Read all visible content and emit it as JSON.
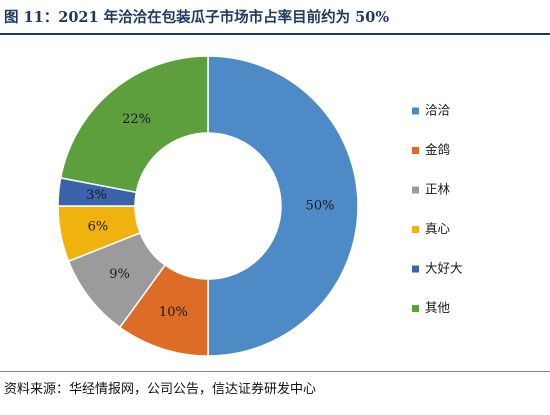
{
  "figure": {
    "title": "图 11：2021 年洽洽在包装瓜子市场市占率目前约为 50%",
    "source": "资料来源：华经情报网，公司公告，信达证券研发中心"
  },
  "chart_data": {
    "type": "pie",
    "donut": true,
    "legend_position": "right",
    "slices": [
      {
        "name": "洽洽",
        "value": 50,
        "label": "50%",
        "color": "#4e8bc6"
      },
      {
        "name": "金鸽",
        "value": 10,
        "label": "10%",
        "color": "#dd6c26"
      },
      {
        "name": "正林",
        "value": 9,
        "label": "9%",
        "color": "#9b9b9b"
      },
      {
        "name": "真心",
        "value": 6,
        "label": "6%",
        "color": "#efb20f"
      },
      {
        "name": "大好大",
        "value": 3,
        "label": "3%",
        "color": "#3a63ab"
      },
      {
        "name": "其他",
        "value": 22,
        "label": "22%",
        "color": "#5c9f3c"
      }
    ]
  }
}
